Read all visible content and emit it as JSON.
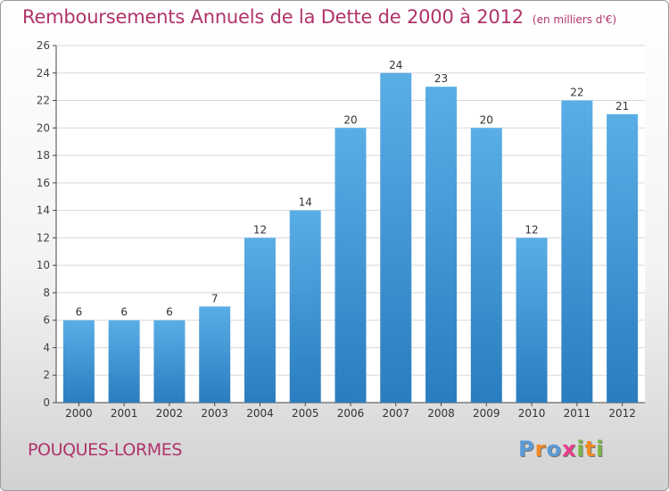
{
  "title": "Remboursements Annuels de la Dette de 2000 à 2012",
  "subtitle": "(en milliers d'€)",
  "commune": "POUQUES-LORMES",
  "logo": {
    "text": "Proxiti",
    "letters": [
      {
        "ch": "P",
        "color": "#5b9bd5"
      },
      {
        "ch": "r",
        "color": "#f08a24"
      },
      {
        "ch": "o",
        "color": "#5b9bd5"
      },
      {
        "ch": "x",
        "color": "#e83e8c"
      },
      {
        "ch": "i",
        "color": "#7ab648"
      },
      {
        "ch": "t",
        "color": "#f08a24"
      },
      {
        "ch": "i",
        "color": "#7ab648"
      }
    ]
  },
  "colors": {
    "bar_top": "#5aaee6",
    "bar_bottom": "#2a7dbf",
    "title": "#b0336a",
    "grid": "#d9d9d9"
  },
  "chart_data": {
    "type": "bar",
    "categories": [
      "2000",
      "2001",
      "2002",
      "2003",
      "2004",
      "2005",
      "2006",
      "2007",
      "2008",
      "2009",
      "2010",
      "2011",
      "2012"
    ],
    "values": [
      6,
      6,
      6,
      7,
      12,
      14,
      20,
      24,
      23,
      20,
      12,
      22,
      21
    ],
    "ylim": [
      0,
      26
    ],
    "yticks": [
      0,
      2,
      4,
      6,
      8,
      10,
      12,
      14,
      16,
      18,
      20,
      22,
      24,
      26
    ],
    "grid": true,
    "data_labels": true,
    "title": "Remboursements Annuels de la Dette de 2000 à 2012",
    "xlabel": "",
    "ylabel": ""
  }
}
